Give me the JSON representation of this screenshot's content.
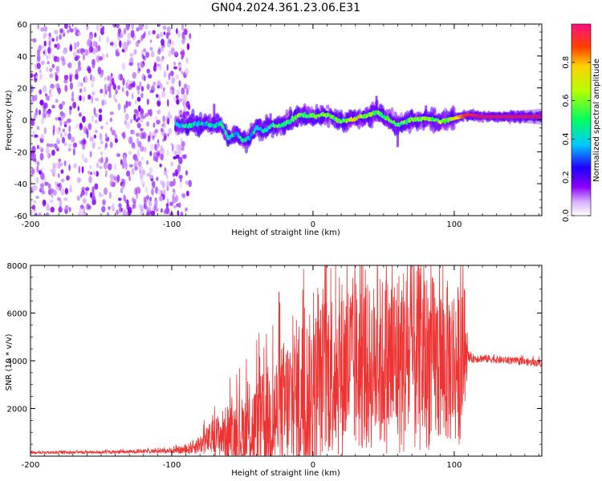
{
  "figure": {
    "title": "GN04.2024.361.23.06.E31"
  },
  "chart_data": [
    {
      "type": "heatmap",
      "title": "GN04.2024.361.23.06.E31",
      "xlabel": "Height of straight line (km)",
      "ylabel": "Frequency (Hz)",
      "xlim": [
        -200,
        162
      ],
      "ylim": [
        -60,
        60
      ],
      "x_ticks": [
        -200,
        -100,
        0,
        100
      ],
      "y_ticks": [
        -60,
        -40,
        -20,
        0,
        20,
        40,
        60
      ],
      "x_tick_labels": [
        "-200",
        "-100",
        "0",
        "100"
      ],
      "y_tick_labels": [
        "-60",
        "-40",
        "-20",
        "0",
        "20",
        "40",
        "60"
      ],
      "colorbar": {
        "label": "Normalized spectral amplitude",
        "range": [
          0,
          1
        ],
        "ticks": [
          0.0,
          0.2,
          0.4,
          0.6,
          0.8
        ],
        "tick_labels": [
          "0.0",
          "0.2",
          "0.4",
          "0.6",
          "0.8"
        ]
      },
      "noise_region": {
        "x_range": [
          -200,
          -95
        ],
        "freq_range": [
          -60,
          60
        ],
        "amplitude": 0.1
      },
      "ridge": {
        "x": [
          -97,
          -90,
          -80,
          -70,
          -65,
          -60,
          -55,
          -50,
          -45,
          -40,
          -35,
          -30,
          -20,
          -10,
          0,
          10,
          20,
          30,
          40,
          45,
          50,
          60,
          70,
          80,
          90,
          100,
          110,
          120,
          130,
          140,
          150,
          162
        ],
        "freq": [
          -3,
          -4,
          -2,
          -4,
          -2,
          -12,
          -8,
          -13,
          -11,
          -5,
          -7,
          -4,
          -3,
          3,
          2,
          3,
          -1,
          1,
          3,
          5,
          2,
          -3,
          0,
          1,
          -1,
          1,
          3,
          2,
          2,
          2,
          2,
          2
        ],
        "amplitude": [
          0.35,
          0.45,
          0.4,
          0.4,
          0.45,
          0.45,
          0.4,
          0.45,
          0.4,
          0.4,
          0.45,
          0.5,
          0.55,
          0.55,
          0.6,
          0.6,
          0.55,
          0.7,
          0.65,
          0.6,
          0.6,
          0.55,
          0.55,
          0.6,
          0.55,
          0.7,
          0.95,
          0.95,
          0.95,
          0.95,
          0.95,
          0.95
        ]
      }
    },
    {
      "type": "line",
      "xlabel": "Height of straight line (km)",
      "ylabel": "SNR (10 * v/v)",
      "xlim": [
        -200,
        162
      ],
      "ylim": [
        0,
        8000
      ],
      "x_ticks": [
        -200,
        -100,
        0,
        100
      ],
      "y_ticks": [
        2000,
        4000,
        6000,
        8000
      ],
      "x_tick_labels": [
        "-200",
        "-100",
        "0",
        "100"
      ],
      "y_tick_labels": [
        "2000",
        "4000",
        "6000",
        "8000"
      ],
      "color": "#ee3333",
      "series": [
        {
          "x": [
            -200,
            -180,
            -160,
            -140,
            -120,
            -100,
            -90,
            -80,
            -70,
            -60,
            -50,
            -40,
            -30,
            -20,
            -10,
            0,
            10,
            20,
            30,
            40,
            50,
            60,
            70,
            80,
            90,
            100,
            105,
            110,
            120,
            130,
            140,
            150,
            162
          ],
          "y": [
            150,
            150,
            160,
            170,
            200,
            230,
            260,
            500,
            800,
            1000,
            1000,
            1200,
            1500,
            2000,
            2500,
            2700,
            3500,
            3700,
            3800,
            3700,
            3900,
            4000,
            4100,
            4000,
            3900,
            3900,
            3800,
            4100,
            4100,
            4050,
            4000,
            3950,
            3900
          ],
          "envelope": [
            50,
            60,
            60,
            70,
            80,
            100,
            200,
            400,
            800,
            1200,
            1500,
            2000,
            2500,
            3000,
            3500,
            3300,
            3500,
            3800,
            3800,
            3500,
            3800,
            4000,
            4200,
            3800,
            3500,
            3500,
            3300,
            200,
            180,
            160,
            150,
            150,
            150
          ]
        }
      ]
    }
  ]
}
